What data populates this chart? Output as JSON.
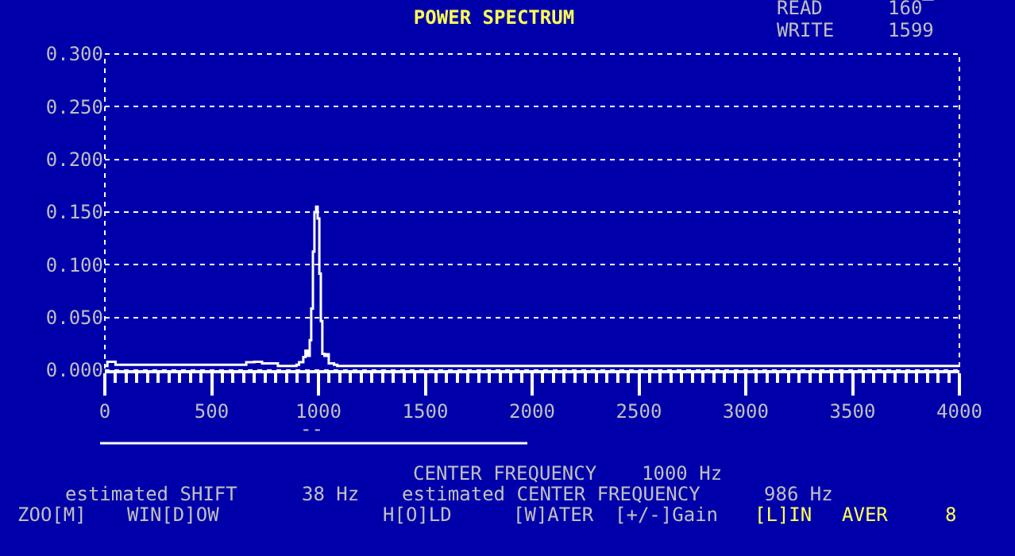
{
  "chart_data": {
    "type": "step",
    "title": "POWER SPECTRUM",
    "x": [
      0,
      12,
      50,
      563,
      662,
      699,
      736,
      810,
      897,
      909,
      929,
      939,
      949,
      959,
      966,
      974,
      981,
      989,
      996,
      1004,
      1011,
      1018,
      1028,
      1038,
      1048,
      1073,
      1088,
      4000
    ],
    "series": [
      {
        "color": "#ffffff",
        "values": [
          0.004,
          0.008,
          0.005,
          0.005,
          0.0075,
          0.008,
          0.0065,
          0.004,
          0.005,
          0.0075,
          0.0125,
          0.0185,
          0.0135,
          0.0285,
          0.0585,
          0.1125,
          0.15,
          0.155,
          0.144,
          0.0915,
          0.0465,
          0.0155,
          0.0135,
          0.015,
          0.0065,
          0.005,
          0.004,
          0.004
        ]
      }
    ],
    "xlim": [
      0,
      4000
    ],
    "ylim": [
      0,
      0.3
    ],
    "xticks": [
      0,
      500,
      1000,
      1500,
      2000,
      2500,
      3000,
      3500,
      4000
    ],
    "yticks": [
      {
        "value": 0,
        "label": "0.000"
      },
      {
        "value": 0.05,
        "label": "0.050"
      },
      {
        "value": 0.1,
        "label": "0.100"
      },
      {
        "value": 0.15,
        "label": "0.150"
      },
      {
        "value": 0.2,
        "label": "0.200"
      },
      {
        "value": 0.25,
        "label": "0.250"
      },
      {
        "value": 0.3,
        "label": "0.300"
      }
    ],
    "grid": "y",
    "annotations": [
      "READ",
      "160‾",
      "WRITE",
      "1599",
      "CENTER FREQUENCY",
      "1000 Hz",
      "estimated SHIFT",
      "38 Hz",
      "estimated CENTER FREQUENCY",
      "986 Hz",
      "ZOO[M]",
      "WIN[D]OW",
      "H[O]LD",
      "[W]ATER",
      "[+/-]Gain",
      "[L]IN",
      "AVER",
      "8",
      "--"
    ]
  }
}
